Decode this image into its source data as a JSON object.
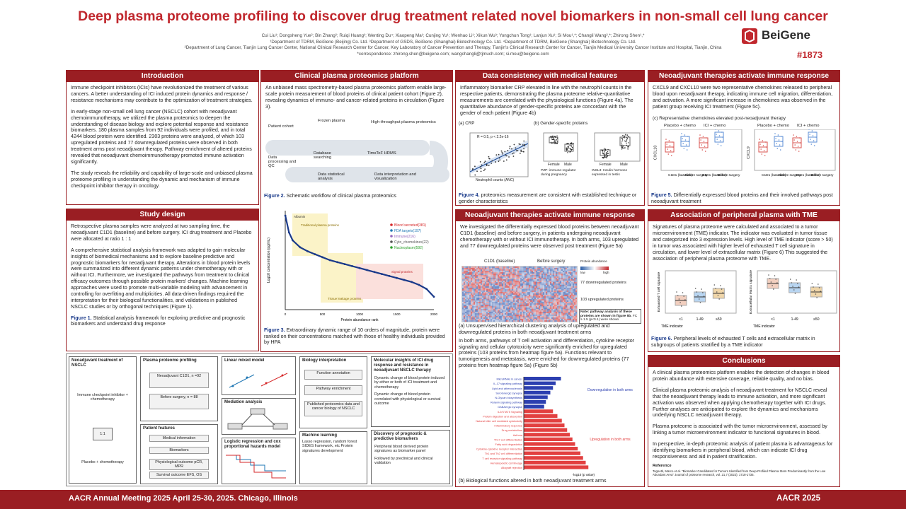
{
  "header": {
    "title": "Deep plasma proteome profiling to discover drug treatment related novel biomarkers in non-small cell lung cancer",
    "authors": "Cui Liu¹; Dongsheng Yue²; Bin Zhang²; Ruiqi Huang³; Wenting Du⁴; Xiaopeng Ma¹; Cunjing Yu¹; Wenhao Li¹; Xikun Wu³; Yongchun Tong¹; Lanjun Xu¹; Si Mou¹,*; Changli Wang²,*; Zhirong Shen¹,*",
    "affil1": "¹Department of TDRM, BeiGene (Beijing) Co. Ltd.   ³Department of GSDS, BeiGene (Shanghai) Biotechnology Co. Ltd.   ⁴Department of TDRM, BeiGene (Shanghai) Biotechnology Co. Ltd.",
    "affil2": "²Department of Lung Cancer, Tianjin Lung Cancer Center, National Clinical Research Center for Cancer, Key Laboratory of Cancer Prevention and Therapy, Tianjin's Clinical Research Center for Cancer, Tianjin Medical University Cancer Institute and Hospital, Tianjin, China",
    "affil3": "*correspondence: zhirong.shen@beigene.com; wangchangli@tjmuch.com; si.mou@beigene.com",
    "logo": "BeiGene",
    "poster_number": "#1873"
  },
  "introduction": {
    "title": "Introduction",
    "p1": "Immune checkpoint inhibitors (ICIs) have revolutionized the treatment of various cancers. A better understanding of ICI induced protein dynamics and response / resistance mechanisms may contribute to the optimization of treatment strategies.",
    "p2": "In early-stage non-small cell lung cancer (NSCLC) cohort with neoadjuvant chemoimmunotherapy, we utilized the plasma proteomics to deepen the understanding of disease biology and explore potential response and resistance biomarkers. 180 plasma samples from 92 individuals were profiled, and in total 4244 blood protein were identified. 2303 proteins were analyzed, of which 103 upregulated proteins and 77 downregulated proteins were observed in both treatment arms post neoadjuvant therapy. Pathway enrichment of altered proteins revealed that neoadjuvant chemoimmunotherapy promoted immune activation significantly.",
    "p3": "The study reveals the reliability and capability of large-scale and unbiased plasma proteome profiling in understanding the dynamic and mechanism of immune checkpoint inhibitor therapy in oncology."
  },
  "study_design": {
    "title": "Study design",
    "p1": "Retrospective plasma samples were analyzed at two sampling time, the neoadjuvant C1D1 (baseline) and before surgery. ICI drug treatment and Placebo were allocated at ratio 1 : 1",
    "p2": "A comprehensive statistical analysis framework was adapted to gain molecular insights of biomedical mechanisms and to explore baseline predictive and prognostic biomarkers for neoadjuvant therapy. Alterations in blood protein levels were summarized into different dynamic patterns under chemotherapy with or without ICI. Furthermore, we investigated the pathways from treatment to clinical efficacy outcomes through possible protein markers' changes. Machine learning approaches were used to promote multi-variable modeling with advancement in controlling for overfitting and multiplicities. All data-driven findings required the interpretation for their biological functionalities, and validations in published NSCLC studies or by orthogonal techniques (Figure 1).",
    "fig1_label": "Figure 1.",
    "fig1_caption": "Statistical analysis framework for exploring predictive and prognostic biomarkers and understand drug response"
  },
  "framework": {
    "col1_title": "Neoadjuvant treatment of NSCLC",
    "arm1": "Immune checkpoint inhibitor + chemotherapy",
    "ratio": "1:1",
    "arm2": "Placebo + chemotherapy",
    "col2_title": "Plasma proteome profiling",
    "sample1": "Neoadjuvant C1D1, n =92",
    "sample2": "Before surgery, n = 88",
    "features_title": "Patient features",
    "feat1": "Medical information",
    "feat2": "Biomarkers",
    "feat3": "Physiological outcome pCR, MPR",
    "feat4": "Survival outcome EFS, OS",
    "col3_a": "Linear mixed model",
    "col3_b": "Mediation analysis",
    "col3_c": "Logistic regression and cox proportional hazards model",
    "col4_title": "Biology interpretation",
    "bio1": "Function annotation",
    "bio2": "Pathway enrichment",
    "bio3": "Published proteomics data and cancer biology of NSCLC",
    "ml_title": "Machine learning",
    "ml_text": "Lasso regression, random forest SIDES framework, etc Protein signatures development",
    "col5_title": "Molecular insights of ICI drug response and resistance in neoadjuvant NSCLC therapy",
    "col5_t1": "Dynamic change of blood protein induced by either or both of ICI treatment and chemotherapy",
    "col5_t2": "Dynamic change of blood protein correlated with physiological or survival outcome",
    "col5_b_title": "Discovery of prognostic & predictive biomarkers",
    "col5_b1": "Peripheral blood derived protein signatures as biomarker panel",
    "col5_b2": "Followed by preclinical and clinical validation"
  },
  "platform": {
    "title": "Clinical plasma proteomics platform",
    "p1": "An unbiased mass spectrometry-based plasma proteomics platform enable large-scale protein measurement of blood proteins of clinical patient cohort (Figure 2), revealing dynamics of immuno- and cancer-related proteins in circulation (Figure 3).",
    "wf": [
      "Patient cohort",
      "Frozen plasma",
      "High-throughput plasma proteomics",
      "Data processing and QC",
      "Database searching",
      "TimsToF HRMS",
      "Data statistical analysis",
      "Data interpretation and visualization"
    ],
    "fig2_label": "Figure 2.",
    "fig2_caption": "Schematic workflow of clinical plasma proteomics",
    "fig3_label": "Figure 3.",
    "fig3_caption": "Extraordinary dynamic range of 10 orders of magnitude, protein were ranked on their concentrations matched with those of healthy individuals provided by HPA"
  },
  "chart_data": [
    {
      "type": "scatter",
      "title": "",
      "xlabel": "Protein abundance rank",
      "ylabel": "Log10 concentration (pg/mL)",
      "x": [
        1,
        50,
        100,
        200,
        300,
        400,
        500,
        600,
        700,
        800,
        900,
        1000,
        1100,
        1200,
        1300,
        1400,
        1500,
        1600,
        1700,
        1800,
        1900,
        2000
      ],
      "y": [
        10.5,
        8.8,
        8.0,
        7.3,
        6.9,
        6.6,
        6.3,
        6.0,
        5.8,
        5.6,
        5.4,
        5.2,
        5.0,
        4.8,
        4.6,
        4.4,
        4.2,
        4.0,
        3.8,
        3.5,
        3.1,
        2.3
      ],
      "legend": [
        "Blood secreted(381)",
        "FDA targets(197)",
        "Immune(216)",
        "Cyto_chemokines(22)",
        "Nucleoplasm(592)"
      ],
      "legend_colors": [
        "#d62728",
        "#1f77b4",
        "#9467bd",
        "#555555",
        "#2ca02c"
      ],
      "annotations": [
        "Albumin",
        "Traditional plasma proteins",
        "Tissue leakage proteins",
        "Signal proteins"
      ]
    },
    {
      "type": "bar",
      "title": "",
      "xlabel": "-log10 (p value)",
      "categories": [
        "MicroRNAs in cancer",
        "IL-17 signaling pathway",
        "Lipid and atherosclerosis",
        "Serotonergic synapse",
        "N-Glycan biosynthesis",
        "Relaxin signaling pathway",
        "GABAergic synapse",
        "IL2/STAT5 Signaling",
        "Protein digestion and absorption",
        "Natural killer cell mediated cytotoxicity",
        "Inflammatory response",
        "Drug metabolism",
        "Asthma",
        "Th17 cell differentiation",
        "Fatty acid degradation",
        "Cytokine-cytokine receptor interaction",
        "Th1 and Th2 cell differentiation",
        "T cell receptor signaling pathway",
        "Hematopoietic cell lineage",
        "Allograft rejection"
      ],
      "values": [
        4.2,
        3.6,
        3.3,
        3.0,
        2.7,
        2.5,
        2.3,
        3.3,
        3.8,
        4.3,
        4.6,
        4.9,
        5.2,
        5.5,
        5.8,
        6.1,
        6.4,
        6.7,
        7.0,
        7.3
      ],
      "direction": [
        "down",
        "down",
        "down",
        "down",
        "down",
        "down",
        "down",
        "up",
        "up",
        "up",
        "up",
        "up",
        "up",
        "up",
        "up",
        "up",
        "up",
        "up",
        "up",
        "up"
      ],
      "labels": [
        "Downregulation in both arms",
        "Upregulation in both arms"
      ]
    }
  ],
  "consistency": {
    "title": "Data consistency with medical features",
    "p1": "Inflammatory biomarker CRP elevated in line with the neutrophil counts in the respective patients, demonstrating the plasma proteome relative-quantitative measurements are correlated with the physiological functions (Figure 4a). The quantitative abundance of gender-specific proteins are concordant with the gender of each patient (Figure 4b)",
    "a_label": "(a) CRP",
    "b_label": "(b) Gender-specific proteins",
    "a_x": "Neutrophil counts (ANC)",
    "a_y": "CRP intensity quantified (MS proteomics)",
    "stat": "R = 0.5, p < 2.2e-16",
    "pzp": "PZP: immune-regulator during pregnancy",
    "insl3": "INSL3: Insulin hormone expressed in testis",
    "female": "Female",
    "male": "Male",
    "fig4_label": "Figure 4.",
    "fig4_caption": "proteomics measurement are consistent with established technique or gender characteristics"
  },
  "neo_mid": {
    "title": "Neoadjuvant therapies activate immune response",
    "p1": "We investigated the differentially expressed blood proteins between neoadjuvant C1D1 (baseline) and before surgery, in patients undergoing neoadjuvant chemotherapy with or without ICI immunotherapy. In both arms, 103 upregulated and 77 downregulated proteins were observed post treatment (Figure 5a)",
    "hm_c1": "C1D1 (baseline)",
    "hm_c2": "Before surgery",
    "hm_legend": "Protein abundance",
    "hm_low": "low",
    "hm_high": "high",
    "down_label": "77 downregulated proteins",
    "up_label": "103 upregulated proteins",
    "note": "Note: pathway analysis of these proteins are shown in figure 5b.",
    "note2": "FC ≥ 1.5 (p<0.1) were shown",
    "cap_a": "(a) Unsupervised hierarchical clustering analysis of upregulated and downregulated proteins in both neoadjuvant treatment arms",
    "p2": "In both arms, pathways of T cell activation and differentiation, cytokine receptor signaling and cellular cytotoxicity were significantly enriched for upregulated proteins (103 proteins from heatmap figure 5a). Functions relevant to tumorigenesis and metastasis, were enriched for downregulated proteins (77 proteins from heatmap figure 5a) (Figure 5b)",
    "cap_b": "(b) Biological functions altered in both neoadjuvant treatment arms"
  },
  "neo_right": {
    "title": "Neoadjuvant therapies activate immune response",
    "p1": "CXCL9 and CXCL10 were two representative chemokines released to peripheral blood upon neoadjuvant therapy, indicating immune cell migration, differentiation, and activation. A more significant increase in chemokines was observed in the patient group receiving ICI treatment (Figure 5c).",
    "c_label": "(c) Representative chemokines elevated post-neoadjuvant therapy",
    "grp1": "Placebo + chemo",
    "grp2": "ICI + chemo",
    "y1": "CXCL10",
    "y2": "CXCL9",
    "x1": "C1D1 (baseline)",
    "x2": "Before surgery",
    "fig5_label": "Figure 5.",
    "fig5_caption": "Differentially expressed blood proteins and their involved pathways post neoadjuvant treatment"
  },
  "tme": {
    "title": "Association of peripheral plasma with TME",
    "p1": "Signatures of plasma proteome were calculated and associated to a tumor microenvironment (TME) indicator. The indicator was evaluated in tumor tissue and categorized into 3 expression levels. High level of TME indicator (score > 50) in tumor was associated with higher level of exhausted T cell signature in circulation, and lower level of extracellular matrix (Figure 6) This suggested the association of peripheral plasma proteome with TME.",
    "y1": "Exhausted T cell signature",
    "y2": "Extracellular Matrix signature",
    "x_title": "TME indicator",
    "cats": [
      "<1",
      "1-49",
      "≥50"
    ],
    "fig6_label": "Figure 6.",
    "fig6_caption": "Peripheral levels of exhausted T cells and extracellular matrix in subgroups of patients stratified by a TME indicator"
  },
  "conclusions": {
    "title": "Conclusions",
    "p1": "A clinical plasma proteomics platform enables the detection of changes in blood protein abundance with extensive coverage, reliable quality, and no bias.",
    "p2": "Clinical plasma proteomic analysis of neoadjuvant treatment for NSCLC reveal that the neoadjuvant therapy leads to immune activation, and more significant activation was observed when applying chemotherapy together with ICI drugs. Further analyses are anticipated to explore the dynamics and mechanisms underlying NSCLC neoadjuvant therapy.",
    "p3": "Plasma proteome is associated with the tumor microenvironment, assessed by linking a tumor microenvironment indicator to functional signatures in blood.",
    "p4": "In perspective, in-depth proteomic analysis of patient plasma is advantageous for identifying biomarkers in peripheral blood, which can indicate ICI drug responsiveness and aid in patient stratification.",
    "ref_title": "Reference",
    "ref_text": "Tognetti, Marco et al. \"Biomarker Candidates for Tumors Identified from Deep-Profiled Plasma Stem Predominantly from the Low Abundant Area\" Journal of proteome research, vol. 21,7 (2022): 1718-1735."
  },
  "footer": {
    "left": "AACR Annual Meeting 2025 April 25-30, 2025. Chicago, Illinois",
    "right": "AACR 2025"
  },
  "colors": {
    "brand": "#9a1e23",
    "title": "#c0272d",
    "link": "#1a3a8a"
  }
}
